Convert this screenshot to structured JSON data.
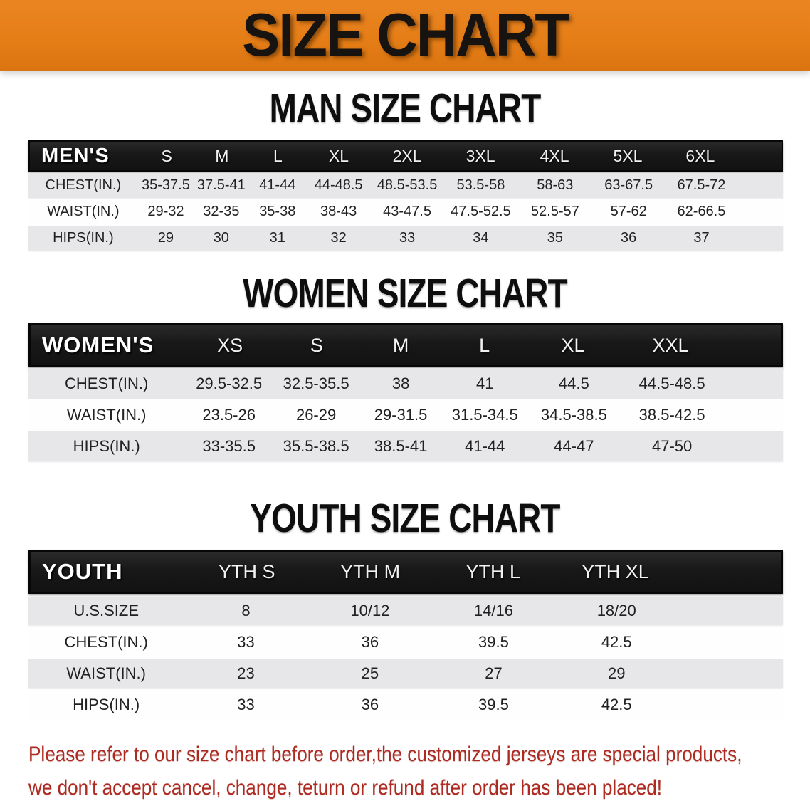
{
  "banner": {
    "title": "SIZE CHART"
  },
  "colors": {
    "banner_orange": "#e67e17",
    "header_black": "#181818",
    "row_gray": "#e7e7e9",
    "footer_red": "#ae2a21"
  },
  "sections": [
    {
      "heading": "MAN SIZE CHART",
      "group_label": "MEN'S",
      "sizes": [
        "S",
        "M",
        "L",
        "XL",
        "2XL",
        "3XL",
        "4XL",
        "5XL",
        "6XL"
      ],
      "rows": [
        {
          "label": "CHEST(IN.)",
          "values": [
            "35-37.5",
            "37.5-41",
            "41-44",
            "44-48.5",
            "48.5-53.5",
            "53.5-58",
            "58-63",
            "63-67.5",
            "67.5-72"
          ]
        },
        {
          "label": "WAIST(IN.)",
          "values": [
            "29-32",
            "32-35",
            "35-38",
            "38-43",
            "43-47.5",
            "47.5-52.5",
            "52.5-57",
            "57-62",
            "62-66.5"
          ]
        },
        {
          "label": "HIPS(IN.)",
          "values": [
            "29",
            "30",
            "31",
            "32",
            "33",
            "34",
            "35",
            "36",
            "37"
          ]
        }
      ]
    },
    {
      "heading": "WOMEN SIZE CHART",
      "group_label": "WOMEN'S",
      "sizes": [
        "XS",
        "S",
        "M",
        "L",
        "XL",
        "XXL"
      ],
      "rows": [
        {
          "label": "CHEST(IN.)",
          "values": [
            "29.5-32.5",
            "32.5-35.5",
            "38",
            "41",
            "44.5",
            "44.5-48.5"
          ]
        },
        {
          "label": "WAIST(IN.)",
          "values": [
            "23.5-26",
            "26-29",
            "29-31.5",
            "31.5-34.5",
            "34.5-38.5",
            "38.5-42.5"
          ]
        },
        {
          "label": "HIPS(IN.)",
          "values": [
            "33-35.5",
            "35.5-38.5",
            "38.5-41",
            "41-44",
            "44-47",
            "47-50"
          ]
        }
      ]
    },
    {
      "heading": "YOUTH SIZE CHART",
      "group_label": "YOUTH",
      "sizes": [
        "YTH S",
        "YTH M",
        "YTH L",
        "YTH XL"
      ],
      "rows": [
        {
          "label": "U.S.SIZE",
          "values": [
            "8",
            "10/12",
            "14/16",
            "18/20"
          ]
        },
        {
          "label": "CHEST(IN.)",
          "values": [
            "33",
            "36",
            "39.5",
            "42.5"
          ]
        },
        {
          "label": "WAIST(IN.)",
          "values": [
            "23",
            "25",
            "27",
            "29"
          ]
        },
        {
          "label": "HIPS(IN.)",
          "values": [
            "33",
            "36",
            "39.5",
            "42.5"
          ]
        }
      ]
    }
  ],
  "footer": {
    "line1": "Please refer to our size chart before order,the customized jerseys are special products,",
    "line2": "we don't accept cancel, change, teturn or refund after order has been placed!"
  }
}
